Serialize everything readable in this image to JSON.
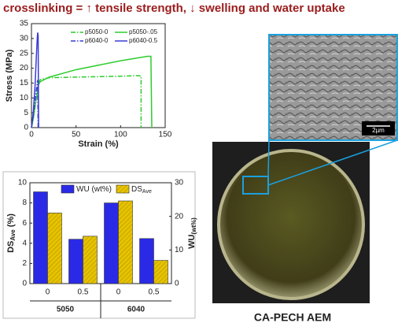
{
  "title": "crosslinking = ↑ tensile strength, ↓ swelling and water uptake",
  "chart_data": [
    {
      "type": "line",
      "xlabel": "Strain (%)",
      "ylabel": "Stress (MPa)",
      "xlim": [
        0,
        150
      ],
      "xticks": [
        0,
        50,
        100,
        150
      ],
      "ylim": [
        0,
        35
      ],
      "yticks": [
        0,
        5,
        10,
        15,
        20,
        25,
        30,
        35
      ],
      "series": [
        {
          "name": "p5050-0",
          "color": "#2ecc2e",
          "style": "dashdot",
          "x": [
            0,
            2,
            5,
            8,
            10,
            20,
            50,
            100,
            120,
            123,
            123
          ],
          "values": [
            0,
            3,
            9,
            15,
            16.2,
            16.8,
            17,
            17.3,
            17.5,
            17.3,
            0
          ]
        },
        {
          "name": "p5050-.05",
          "color": "#2ecc2e",
          "style": "solid",
          "x": [
            0,
            2,
            5,
            8,
            10,
            20,
            50,
            100,
            130,
            134,
            135
          ],
          "values": [
            0,
            3,
            9,
            14.5,
            15.5,
            17,
            19.5,
            22.5,
            24,
            24,
            0
          ]
        },
        {
          "name": "p6040-0",
          "color": "#3a3ad8",
          "style": "dashdot",
          "x": [
            0,
            2,
            4,
            6,
            7,
            7.5
          ],
          "values": [
            0,
            4,
            9,
            14,
            16,
            0
          ]
        },
        {
          "name": "p6040-0.5",
          "color": "#3a3ad8",
          "style": "solid",
          "x": [
            0,
            2,
            4,
            5.5,
            6.5,
            7,
            7.5,
            8
          ],
          "values": [
            0,
            5,
            14,
            24,
            30,
            32,
            31,
            0
          ]
        }
      ]
    },
    {
      "type": "bar",
      "categories": [
        "0",
        "0.5",
        "0",
        "0.5"
      ],
      "groups": [
        "5050",
        "6040"
      ],
      "ylabel": {
        "main": "DS",
        "sub": "Ave",
        "unit": " (%)"
      },
      "y2label": {
        "main": "WU",
        "sub": "(wt%)"
      },
      "ylim": [
        0,
        10
      ],
      "yticks": [
        0,
        2,
        4,
        6,
        8,
        10
      ],
      "y2lim": [
        0,
        30
      ],
      "y2ticks": [
        0,
        10,
        20,
        30
      ],
      "series": [
        {
          "name": "WU (wt%)",
          "color": "#2a2ae6",
          "axis": "y2",
          "values": [
            27.3,
            13.2,
            24,
            13.4
          ]
        },
        {
          "name": "DS",
          "name_sub": "Ave",
          "color": "#e6c300",
          "axis": "y",
          "values": [
            7.0,
            4.7,
            8.2,
            2.3
          ]
        }
      ]
    }
  ],
  "image": {
    "caption": "CA-PECH AEM",
    "scale_bar": "2µm"
  }
}
